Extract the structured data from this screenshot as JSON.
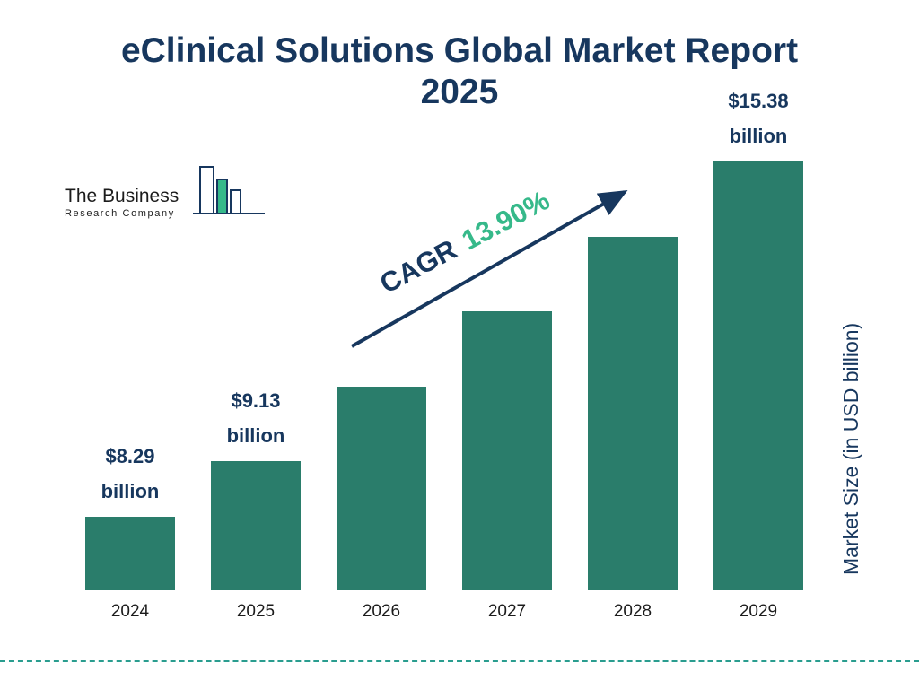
{
  "title": {
    "line1": "eClinical Solutions Global Market Report",
    "line2": "2025"
  },
  "logo": {
    "line1": "The Business",
    "line2": "Research Company"
  },
  "cagr": {
    "label": "CAGR",
    "value": "13.90%"
  },
  "ylabel": "Market Size (in USD billion)",
  "colors": {
    "bar": "#2A7D6B",
    "navy": "#17375E",
    "green": "#36B98A",
    "teal": "#2A9D8F"
  },
  "chart_data": {
    "type": "bar",
    "title": "eClinical Solutions Global Market Report 2025",
    "categories": [
      "2024",
      "2025",
      "2026",
      "2027",
      "2028",
      "2029"
    ],
    "values": [
      8.29,
      9.13,
      10.4,
      11.85,
      13.5,
      15.38
    ],
    "unit": "USD billion",
    "xlabel": "",
    "ylabel": "Market Size (in USD billion)",
    "data_labels": [
      "$8.29 billion",
      "$9.13 billion",
      null,
      null,
      null,
      "$15.38 billion"
    ],
    "annotations": [
      "CAGR 13.90%"
    ],
    "legend": "none",
    "grid": false
  }
}
